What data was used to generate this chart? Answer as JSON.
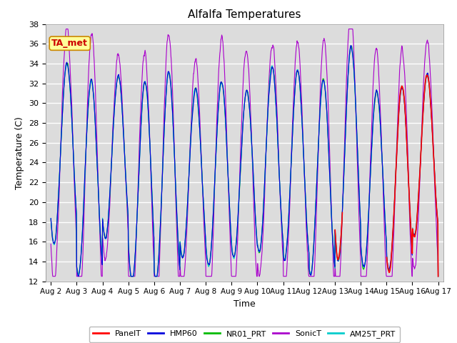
{
  "title": "Alfalfa Temperatures",
  "ylabel": "Temperature (C)",
  "xlabel": "Time",
  "ylim": [
    12,
    38
  ],
  "yticks": [
    12,
    14,
    16,
    18,
    20,
    22,
    24,
    26,
    28,
    30,
    32,
    34,
    36,
    38
  ],
  "bg_color": "#dcdcdc",
  "colors": {
    "PanelT": "#ff0000",
    "HMP60": "#0000dd",
    "NR01_PRT": "#00bb00",
    "SonicT": "#aa00cc",
    "AM25T_PRT": "#00cccc"
  },
  "annotation_text": "TA_met",
  "annotation_color": "#cc0000",
  "annotation_bg": "#ffff99",
  "annotation_border": "#cc8800",
  "x_tick_labels": [
    "Aug 2",
    "Aug 3",
    "Aug 4",
    "Aug 5",
    "Aug 6",
    "Aug 7",
    "Aug 8",
    "Aug 9",
    "Aug 10",
    "Aug 11",
    "Aug 12",
    "Aug 13",
    "Aug 14",
    "Aug 15",
    "Aug 16",
    "Aug 17"
  ],
  "x_tick_positions": [
    0,
    1,
    2,
    3,
    4,
    5,
    6,
    7,
    8,
    9,
    10,
    11,
    12,
    13,
    14,
    15
  ],
  "xlim": [
    -0.2,
    15.2
  ]
}
